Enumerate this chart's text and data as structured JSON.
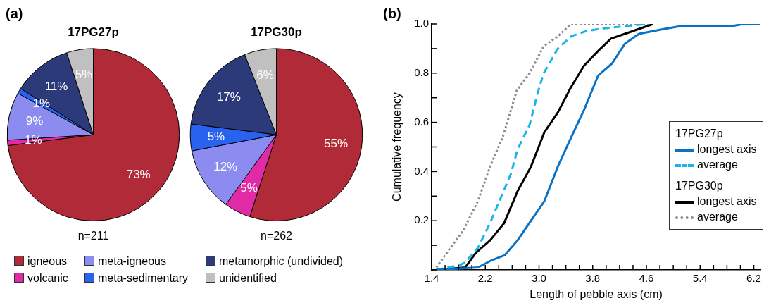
{
  "chart_data": [
    {
      "type": "pie",
      "title": "17PG27p",
      "categories": [
        "igneous",
        "volcanic",
        "meta-igneous",
        "meta-sedimentary",
        "metamorphic (undivided)",
        "unidentified"
      ],
      "values": [
        73,
        1,
        9,
        1,
        11,
        5
      ],
      "colors": [
        "#b02a37",
        "#e02aa6",
        "#8c8cf0",
        "#2a62f0",
        "#2c3a7a",
        "#c0c0c0"
      ],
      "value_labels": [
        "73%",
        "1%",
        "9%",
        "1%",
        "11%",
        "5%"
      ],
      "legend": "bottom",
      "annotations": [
        "(a)",
        "n=211"
      ]
    },
    {
      "type": "pie",
      "title": "17PG30p",
      "categories": [
        null,
        null,
        null,
        null,
        null,
        null
      ],
      "values": [
        55,
        5,
        12,
        5,
        17,
        6
      ],
      "colors": [
        "#b02a37",
        "#e02aa6",
        "#8c8cf0",
        "#2a62f0",
        "#2c3a7a",
        "#c0c0c0"
      ],
      "value_labels": [
        "55%",
        "5%",
        "12%",
        "5%",
        "17%",
        "6%"
      ],
      "annotations": [
        "n=262"
      ]
    },
    {
      "type": "line",
      "xlabel": "Length of pebble axis (cm)",
      "ylabel": "Cumulative frequency",
      "annotations": [
        "(b)",
        "17PG27p",
        "17PG30p"
      ],
      "legend": "right",
      "marker": "none",
      "grid": false,
      "xlim": [
        1.4,
        6.3
      ],
      "ylim": [
        0,
        1
      ],
      "xticks": [
        1.4,
        {
          "value": 1.6,
          "label": null
        },
        {
          "value": 1.8,
          "label": null
        },
        {
          "value": 2.0,
          "label": null
        },
        2.2,
        {
          "value": 2.4,
          "label": null
        },
        {
          "value": 2.6,
          "label": null
        },
        {
          "value": 2.8,
          "label": null
        },
        {
          "value": 3.0,
          "label": "3.0"
        },
        {
          "value": 3.2,
          "label": null
        },
        {
          "value": 3.4,
          "label": null
        },
        {
          "value": 3.6,
          "label": null
        },
        3.8,
        {
          "value": 4.0,
          "label": null
        },
        {
          "value": 4.2,
          "label": null
        },
        {
          "value": 4.4,
          "label": null
        },
        4.6,
        {
          "value": 4.8,
          "label": null
        },
        {
          "value": 5.0,
          "label": null
        },
        {
          "value": 5.2,
          "label": null
        },
        5.4,
        {
          "value": 5.6,
          "label": null
        },
        {
          "value": 5.8,
          "label": null
        },
        {
          "value": 6.0,
          "label": null
        },
        6.2
      ],
      "yticks": [
        {
          "value": 0,
          "label": null
        },
        {
          "value": 0.1,
          "label": null
        },
        0.2,
        {
          "value": 0.3,
          "label": null
        },
        0.4,
        {
          "value": 0.5,
          "label": null
        },
        0.6,
        {
          "value": 0.7,
          "label": null
        },
        0.8,
        {
          "value": 0.9,
          "label": null
        },
        {
          "value": 1,
          "label": "1.0"
        }
      ],
      "series": [
        {
          "name": "longest axis",
          "color": "#0a72c4",
          "line_style": "solid",
          "x": [
            1.47,
            2.09,
            2.3,
            2.49,
            2.68,
            2.88,
            3.08,
            3.28,
            3.48,
            3.67,
            3.88,
            4.09,
            4.28,
            4.49,
            4.87,
            5.08,
            5.29,
            5.84,
            6.05,
            6.3
          ],
          "values": [
            0,
            0.01,
            0.04,
            0.06,
            0.12,
            0.2,
            0.28,
            0.42,
            0.54,
            0.65,
            0.79,
            0.84,
            0.92,
            0.96,
            0.98,
            0.99,
            0.99,
            0.99,
            1,
            1
          ]
        },
        {
          "name": "average",
          "color": "#19b4ea",
          "line_style": "dashed",
          "x": [
            1.47,
            1.82,
            1.9,
            2.09,
            2.27,
            2.44,
            2.58,
            2.68,
            2.86,
            2.98,
            3.07,
            3.28,
            3.48,
            3.69,
            3.9,
            4.25,
            4.6
          ],
          "values": [
            0,
            0.02,
            0.03,
            0.09,
            0.19,
            0.3,
            0.39,
            0.49,
            0.59,
            0.72,
            0.8,
            0.9,
            0.95,
            0.97,
            0.98,
            0.99,
            1
          ]
        },
        {
          "name": "longest axis",
          "color": "#000000",
          "line_style": "solid",
          "x": [
            1.47,
            1.9,
            2.06,
            2.27,
            2.48,
            2.68,
            2.88,
            3.08,
            3.28,
            3.47,
            3.67,
            3.88,
            4.07,
            4.28,
            4.49,
            4.7
          ],
          "values": [
            0,
            0.01,
            0.07,
            0.12,
            0.19,
            0.32,
            0.42,
            0.56,
            0.64,
            0.74,
            0.83,
            0.89,
            0.94,
            0.96,
            0.98,
            1
          ]
        },
        {
          "name": "average",
          "color": "#8c8c8c",
          "line_style": "dotted",
          "x": [
            1.47,
            1.68,
            1.87,
            2.09,
            2.27,
            2.46,
            2.67,
            2.86,
            3.07,
            3.28,
            3.48,
            3.69,
            4.7
          ],
          "values": [
            0.01,
            0.09,
            0.16,
            0.28,
            0.42,
            0.54,
            0.73,
            0.8,
            0.91,
            0.95,
            1,
            1,
            1
          ]
        }
      ]
    }
  ]
}
